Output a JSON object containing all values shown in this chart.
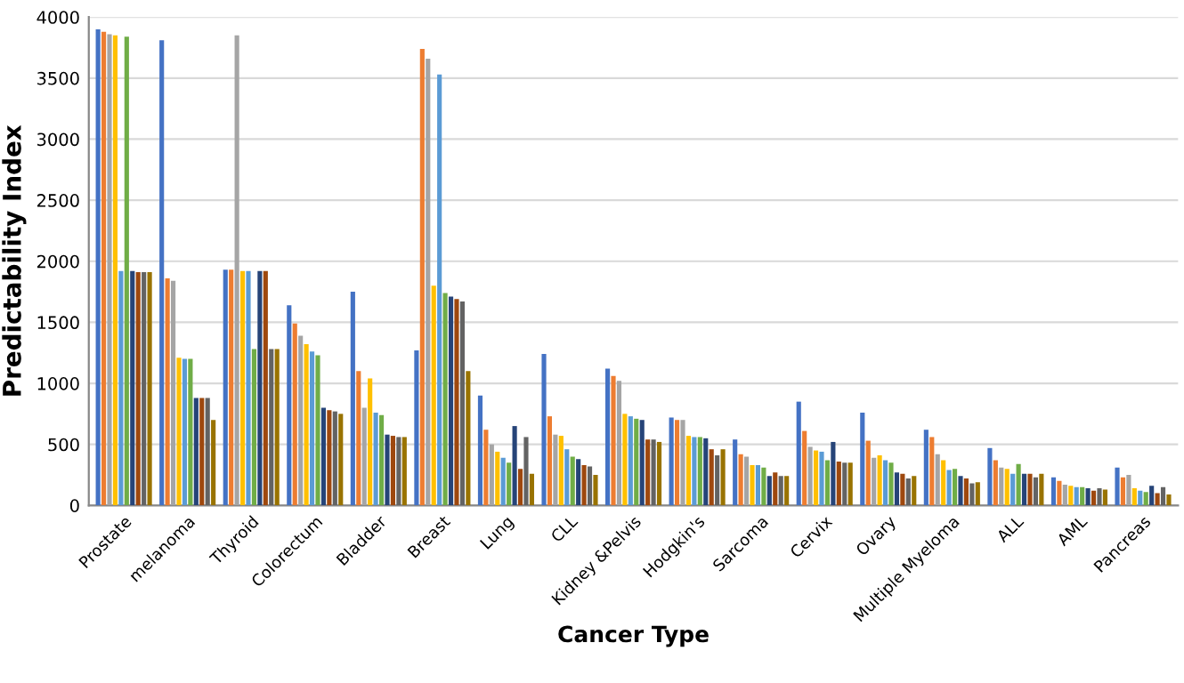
{
  "chart_data": {
    "type": "bar",
    "xlabel": "Cancer Type",
    "ylabel": "Predictability Index",
    "categories": [
      "Prostate",
      "melanoma",
      "Thyroid",
      "Colorectum",
      "Bladder",
      "Breast",
      "Lung",
      "CLL",
      "Kidney &Pelvis",
      "Hodgkin's",
      "Sarcoma",
      "Cervix",
      "Ovary",
      "Multiple Myeloma",
      "ALL",
      "AML",
      "Pancreas"
    ],
    "series": [
      {
        "color": "#4472c4",
        "values": [
          3900,
          3810,
          1930,
          1640,
          1750,
          1270,
          900,
          1240,
          1120,
          720,
          540,
          850,
          760,
          620,
          470,
          230,
          310
        ]
      },
      {
        "color": "#ed7d31",
        "values": [
          3880,
          1860,
          1930,
          1490,
          1100,
          3740,
          620,
          730,
          1060,
          700,
          420,
          610,
          530,
          560,
          370,
          200,
          230
        ]
      },
      {
        "color": "#a5a5a5",
        "values": [
          3860,
          1840,
          3850,
          1390,
          800,
          3660,
          500,
          580,
          1020,
          700,
          400,
          480,
          390,
          420,
          310,
          170,
          250
        ]
      },
      {
        "color": "#ffc000",
        "values": [
          3850,
          1210,
          1920,
          1320,
          1040,
          1800,
          440,
          570,
          750,
          570,
          330,
          450,
          410,
          370,
          300,
          160,
          140
        ]
      },
      {
        "color": "#5b9bd5",
        "values": [
          1920,
          1200,
          1920,
          1260,
          760,
          3530,
          390,
          460,
          730,
          560,
          330,
          440,
          370,
          290,
          260,
          150,
          120
        ]
      },
      {
        "color": "#70ad47",
        "values": [
          3840,
          1200,
          1280,
          1230,
          740,
          1740,
          350,
          400,
          710,
          560,
          310,
          370,
          350,
          300,
          340,
          150,
          110
        ]
      },
      {
        "color": "#264478",
        "values": [
          1920,
          880,
          1920,
          800,
          580,
          1710,
          650,
          380,
          700,
          550,
          240,
          520,
          270,
          240,
          260,
          140,
          160
        ]
      },
      {
        "color": "#9e480e",
        "values": [
          1910,
          880,
          1920,
          780,
          570,
          1690,
          300,
          330,
          540,
          460,
          270,
          360,
          260,
          220,
          260,
          120,
          100
        ]
      },
      {
        "color": "#636363",
        "values": [
          1910,
          880,
          1280,
          770,
          560,
          1670,
          560,
          320,
          540,
          410,
          240,
          350,
          220,
          180,
          230,
          140,
          150
        ]
      },
      {
        "color": "#997300",
        "values": [
          1910,
          700,
          1280,
          750,
          560,
          1100,
          260,
          250,
          520,
          460,
          240,
          350,
          240,
          190,
          260,
          130,
          90
        ]
      }
    ],
    "ylim": [
      0,
      4000
    ],
    "yticks": [
      0,
      500,
      1000,
      1500,
      2000,
      2500,
      3000,
      3500,
      4000
    ],
    "grid": "y",
    "legend": false
  }
}
